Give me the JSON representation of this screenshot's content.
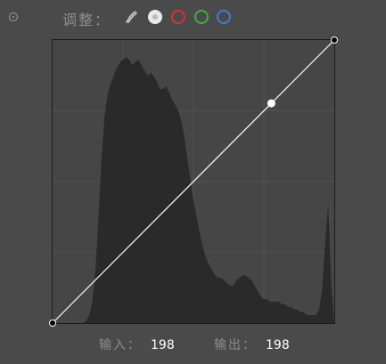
{
  "panel": {
    "toggle_icon": "radio-dot-icon",
    "title": "调整："
  },
  "channels": [
    {
      "name": "curve-tool",
      "icon": "curve-pen-icon"
    },
    {
      "name": "rgb",
      "icon": "white-dot-icon",
      "color": "#e9e9e9",
      "selected": true
    },
    {
      "name": "red",
      "icon": "red-ring-icon",
      "color": "#d93434"
    },
    {
      "name": "green",
      "icon": "green-ring-icon",
      "color": "#3fae3f"
    },
    {
      "name": "blue",
      "icon": "blue-ring-icon",
      "color": "#3b7ee0"
    }
  ],
  "curve": {
    "input_max": 255,
    "output_max": 255,
    "control_points": [
      {
        "input": 0,
        "output": 0
      },
      {
        "input": 198,
        "output": 198
      },
      {
        "input": 255,
        "output": 255
      }
    ],
    "selected_point": {
      "input": 198,
      "output": 198
    },
    "grid_divisions": 4,
    "histogram_color": "#2a2a2a",
    "histogram_profile": [
      0,
      0,
      0,
      0,
      0,
      0,
      0,
      0,
      0,
      0,
      0,
      1,
      3,
      8,
      20,
      40,
      62,
      78,
      86,
      90,
      93,
      96,
      98,
      99,
      100,
      99,
      97,
      98,
      99,
      97,
      95,
      93,
      94,
      93,
      91,
      88,
      88,
      89,
      87,
      84,
      82,
      80,
      76,
      70,
      62,
      54,
      46,
      40,
      34,
      29,
      25,
      22,
      20,
      18,
      17,
      17,
      16,
      15,
      14,
      14,
      16,
      17,
      18,
      18,
      17,
      16,
      14,
      12,
      10,
      9,
      9,
      8,
      8,
      8,
      8,
      7,
      7,
      6,
      6,
      5,
      5,
      4,
      4,
      3,
      3,
      3,
      3,
      5,
      12,
      30,
      45,
      15,
      0
    ]
  },
  "readout": {
    "input_label": "输入：",
    "input_value": "198",
    "output_label": "输出：",
    "output_value": "198"
  }
}
